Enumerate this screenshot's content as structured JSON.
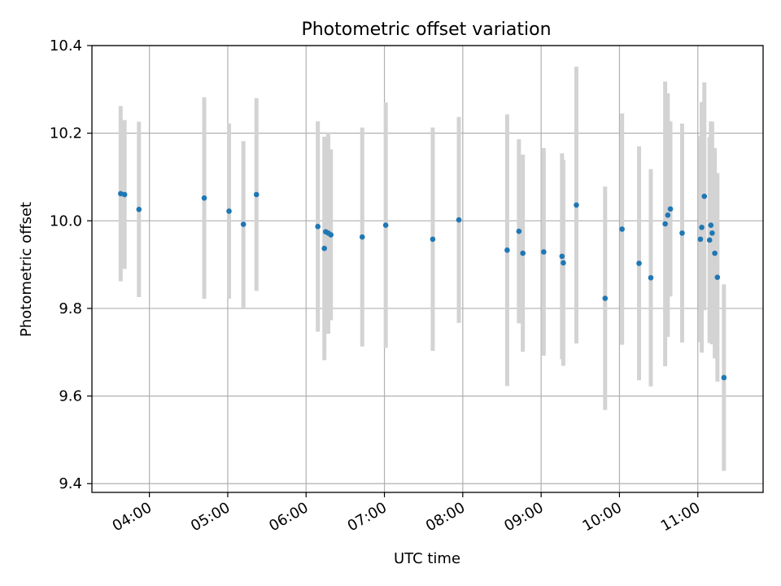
{
  "chart_data": {
    "type": "scatter",
    "title": "Photometric offset variation",
    "xlabel": "UTC time",
    "ylabel": "Photometric offset",
    "x_ticks": [
      "04:00",
      "05:00",
      "06:00",
      "07:00",
      "08:00",
      "09:00",
      "10:00",
      "11:00"
    ],
    "y_ticks": [
      "9.4",
      "9.6",
      "9.8",
      "10.0",
      "10.2",
      "10.4"
    ],
    "xlim": [
      "03:16",
      "11:50"
    ],
    "ylim": [
      9.38,
      10.4
    ],
    "grid": true,
    "colors": {
      "points": "#1f77b4",
      "errorbars": "#d3d3d3",
      "grid": "#b0b0b0"
    },
    "points": [
      {
        "x": "03:38",
        "y": 10.062,
        "err": 0.2
      },
      {
        "x": "03:41",
        "y": 10.06,
        "err": 0.17
      },
      {
        "x": "03:52",
        "y": 10.026,
        "err": 0.2
      },
      {
        "x": "04:42",
        "y": 10.052,
        "err": 0.23
      },
      {
        "x": "05:01",
        "y": 10.022,
        "err": 0.2
      },
      {
        "x": "05:12",
        "y": 9.992,
        "err": 0.19
      },
      {
        "x": "05:22",
        "y": 10.06,
        "err": 0.22
      },
      {
        "x": "06:09",
        "y": 9.987,
        "err": 0.24
      },
      {
        "x": "06:14",
        "y": 9.937,
        "err": 0.255
      },
      {
        "x": "06:15",
        "y": 9.975,
        "err": 0.215
      },
      {
        "x": "06:17",
        "y": 9.972,
        "err": 0.23
      },
      {
        "x": "06:19",
        "y": 9.968,
        "err": 0.195
      },
      {
        "x": "06:43",
        "y": 9.963,
        "err": 0.25
      },
      {
        "x": "07:01",
        "y": 9.99,
        "err": 0.28
      },
      {
        "x": "07:37",
        "y": 9.958,
        "err": 0.255
      },
      {
        "x": "07:57",
        "y": 10.002,
        "err": 0.235
      },
      {
        "x": "08:34",
        "y": 9.933,
        "err": 0.31
      },
      {
        "x": "08:43",
        "y": 9.976,
        "err": 0.21
      },
      {
        "x": "08:46",
        "y": 9.926,
        "err": 0.225
      },
      {
        "x": "09:02",
        "y": 9.929,
        "err": 0.237
      },
      {
        "x": "09:16",
        "y": 9.919,
        "err": 0.235
      },
      {
        "x": "09:17",
        "y": 9.904,
        "err": 0.235
      },
      {
        "x": "09:27",
        "y": 10.036,
        "err": 0.316
      },
      {
        "x": "09:49",
        "y": 9.823,
        "err": 0.255
      },
      {
        "x": "10:02",
        "y": 9.981,
        "err": 0.264
      },
      {
        "x": "10:15",
        "y": 9.903,
        "err": 0.267
      },
      {
        "x": "10:24",
        "y": 9.87,
        "err": 0.248
      },
      {
        "x": "10:35",
        "y": 9.993,
        "err": 0.325
      },
      {
        "x": "10:37",
        "y": 10.013,
        "err": 0.278
      },
      {
        "x": "10:39",
        "y": 10.027,
        "err": 0.2
      },
      {
        "x": "10:48",
        "y": 9.972,
        "err": 0.25
      },
      {
        "x": "11:02",
        "y": 9.958,
        "err": 0.235
      },
      {
        "x": "11:03",
        "y": 9.985,
        "err": 0.286
      },
      {
        "x": "11:05",
        "y": 10.056,
        "err": 0.26
      },
      {
        "x": "11:09",
        "y": 9.956,
        "err": 0.235
      },
      {
        "x": "11:10",
        "y": 9.99,
        "err": 0.237
      },
      {
        "x": "11:11",
        "y": 9.972,
        "err": 0.254
      },
      {
        "x": "11:13",
        "y": 9.926,
        "err": 0.24
      },
      {
        "x": "11:15",
        "y": 9.871,
        "err": 0.238
      },
      {
        "x": "11:20",
        "y": 9.642,
        "err": 0.213
      }
    ]
  }
}
